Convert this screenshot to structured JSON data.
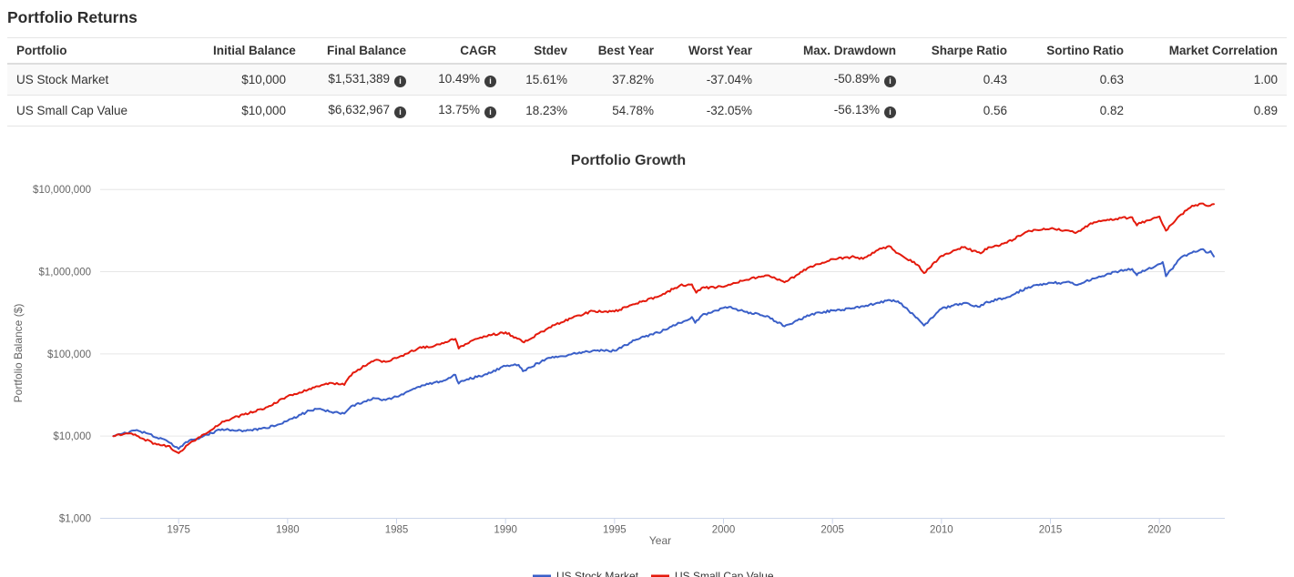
{
  "page": {
    "title": "Portfolio Returns"
  },
  "icons": {
    "info_glyph": "i"
  },
  "table": {
    "columns": [
      "Portfolio",
      "Initial Balance",
      "Final Balance",
      "CAGR",
      "Stdev",
      "Best Year",
      "Worst Year",
      "Max. Drawdown",
      "Sharpe Ratio",
      "Sortino Ratio",
      "Market Correlation"
    ],
    "info_icon_columns": [
      2,
      3,
      7
    ],
    "rows": [
      {
        "id": "us-stock-market",
        "cells": [
          "US Stock Market",
          "$10,000",
          "$1,531,389",
          "10.49%",
          "15.61%",
          "37.82%",
          "-37.04%",
          "-50.89%",
          "0.43",
          "0.63",
          "1.00"
        ]
      },
      {
        "id": "us-small-cap-value",
        "cells": [
          "US Small Cap Value",
          "$10,000",
          "$6,632,967",
          "13.75%",
          "18.23%",
          "54.78%",
          "-32.05%",
          "-56.13%",
          "0.56",
          "0.82",
          "0.89"
        ]
      }
    ]
  },
  "chart_data": {
    "type": "line",
    "title": "Portfolio Growth",
    "legend_position": "bottom",
    "grid": true,
    "x_axis": {
      "label": "Year",
      "range": [
        1971.4,
        2023.0
      ],
      "ticks": [
        1975,
        1980,
        1985,
        1990,
        1995,
        2000,
        2005,
        2010,
        2015,
        2020
      ]
    },
    "y_axis": {
      "label": "Portfolio Balance ($)",
      "scale": "log",
      "range": [
        1000,
        10000000
      ],
      "ticks": [
        10000000,
        1000000,
        100000,
        10000,
        1000
      ],
      "tick_labels": [
        "$10,000,000",
        "$1,000,000",
        "$100,000",
        "$10,000",
        "$1,000"
      ]
    },
    "series": [
      {
        "id": "us-stock-market",
        "name": "US Stock Market",
        "color": "#3a5fc8",
        "points": [
          [
            1972,
            10000
          ],
          [
            1972.6,
            10900
          ],
          [
            1973,
            11700
          ],
          [
            1973.5,
            10900
          ],
          [
            1974,
            9560
          ],
          [
            1974.5,
            8600
          ],
          [
            1975,
            6970
          ],
          [
            1975.5,
            8900
          ],
          [
            1976,
            9630
          ],
          [
            1977,
            12150
          ],
          [
            1978,
            11640
          ],
          [
            1979,
            12510
          ],
          [
            1980,
            15340
          ],
          [
            1981,
            20370
          ],
          [
            1981.5,
            21500
          ],
          [
            1982,
            19620
          ],
          [
            1982.6,
            18800
          ],
          [
            1983,
            23630
          ],
          [
            1984,
            28830
          ],
          [
            1984.5,
            27500
          ],
          [
            1985,
            30120
          ],
          [
            1986,
            39820
          ],
          [
            1987,
            46230
          ],
          [
            1987.7,
            55500
          ],
          [
            1987.85,
            43500
          ],
          [
            1988,
            47040
          ],
          [
            1989,
            55320
          ],
          [
            1990,
            71030
          ],
          [
            1990.6,
            73500
          ],
          [
            1990.8,
            61500
          ],
          [
            1991,
            66560
          ],
          [
            1992,
            89650
          ],
          [
            1993,
            98440
          ],
          [
            1994,
            109370
          ],
          [
            1995,
            109150
          ],
          [
            1996,
            149320
          ],
          [
            1997,
            181120
          ],
          [
            1998,
            237810
          ],
          [
            1998.55,
            281000
          ],
          [
            1998.7,
            239000
          ],
          [
            1999,
            293220
          ],
          [
            2000,
            363000
          ],
          [
            2000.25,
            372000
          ],
          [
            2001,
            324520
          ],
          [
            2002,
            288820
          ],
          [
            2002.8,
            216000
          ],
          [
            2003,
            228170
          ],
          [
            2004,
            299810
          ],
          [
            2005,
            337590
          ],
          [
            2006,
            358180
          ],
          [
            2007,
            414060
          ],
          [
            2007.8,
            452000
          ],
          [
            2008,
            437250
          ],
          [
            2008.9,
            272000
          ],
          [
            2009.2,
            221000
          ],
          [
            2010,
            354530
          ],
          [
            2011,
            415150
          ],
          [
            2011.75,
            372000
          ],
          [
            2012,
            419300
          ],
          [
            2013,
            487440
          ],
          [
            2014,
            650000
          ],
          [
            2015,
            731250
          ],
          [
            2016,
            734180
          ],
          [
            2016.15,
            692000
          ],
          [
            2017,
            826680
          ],
          [
            2018,
            1001940
          ],
          [
            2018.75,
            1080000
          ],
          [
            2018.97,
            905000
          ],
          [
            2019,
            948840
          ],
          [
            2020,
            1239660
          ],
          [
            2020.15,
            1310000
          ],
          [
            2020.3,
            880000
          ],
          [
            2021,
            1498750
          ],
          [
            2021.9,
            1870000
          ],
          [
            2022,
            1883930
          ],
          [
            2022.2,
            1700000
          ],
          [
            2022.35,
            1780000
          ],
          [
            2022.5,
            1531389
          ]
        ]
      },
      {
        "id": "us-small-cap-value",
        "name": "US Small Cap Value",
        "color": "#e41a0c",
        "points": [
          [
            1972,
            10000
          ],
          [
            1972.6,
            10800
          ],
          [
            1973,
            10500
          ],
          [
            1973.4,
            9200
          ],
          [
            1974,
            7900
          ],
          [
            1974.5,
            7600
          ],
          [
            1975,
            6200
          ],
          [
            1975.6,
            8600
          ],
          [
            1976,
            9750
          ],
          [
            1977,
            15000
          ],
          [
            1978,
            18300
          ],
          [
            1979,
            22300
          ],
          [
            1980,
            30600
          ],
          [
            1981,
            37600
          ],
          [
            1982,
            44400
          ],
          [
            1982.6,
            42000
          ],
          [
            1983,
            59000
          ],
          [
            1984,
            83800
          ],
          [
            1984.5,
            80000
          ],
          [
            1985,
            88800
          ],
          [
            1986,
            117200
          ],
          [
            1987,
            130100
          ],
          [
            1987.7,
            152000
          ],
          [
            1987.85,
            116000
          ],
          [
            1988,
            124900
          ],
          [
            1989,
            163600
          ],
          [
            1990,
            183200
          ],
          [
            1990.85,
            138000
          ],
          [
            1991,
            144700
          ],
          [
            1992,
            209800
          ],
          [
            1993,
            270600
          ],
          [
            1994,
            332800
          ],
          [
            1995,
            327800
          ],
          [
            1996,
            409800
          ],
          [
            1997,
            495900
          ],
          [
            1998,
            679400
          ],
          [
            1998.55,
            700000
          ],
          [
            1998.75,
            555000
          ],
          [
            1999,
            635200
          ],
          [
            2000,
            654300
          ],
          [
            2001,
            791700
          ],
          [
            2002,
            902500
          ],
          [
            2002.8,
            742000
          ],
          [
            2003,
            794200
          ],
          [
            2004,
            1159500
          ],
          [
            2005,
            1426200
          ],
          [
            2006,
            1511800
          ],
          [
            2006.4,
            1430000
          ],
          [
            2007,
            1799000
          ],
          [
            2007.6,
            2050000
          ],
          [
            2008,
            1673100
          ],
          [
            2008.9,
            1210000
          ],
          [
            2009.2,
            960000
          ],
          [
            2010,
            1558600
          ],
          [
            2011,
            1979400
          ],
          [
            2011.8,
            1670000
          ],
          [
            2012,
            1890300
          ],
          [
            2013,
            2249500
          ],
          [
            2014,
            3149300
          ],
          [
            2015,
            3338300
          ],
          [
            2016,
            3121300
          ],
          [
            2016.15,
            2950000
          ],
          [
            2017,
            3995300
          ],
          [
            2018,
            4394800
          ],
          [
            2018.75,
            4600000
          ],
          [
            2018.97,
            3650000
          ],
          [
            2019,
            3779500
          ],
          [
            2020,
            4686600
          ],
          [
            2020.3,
            3150000
          ],
          [
            2021,
            4967800
          ],
          [
            2021.5,
            6350000
          ],
          [
            2022,
            6756200
          ],
          [
            2022.25,
            6280000
          ],
          [
            2022.5,
            6632967
          ]
        ]
      }
    ]
  }
}
